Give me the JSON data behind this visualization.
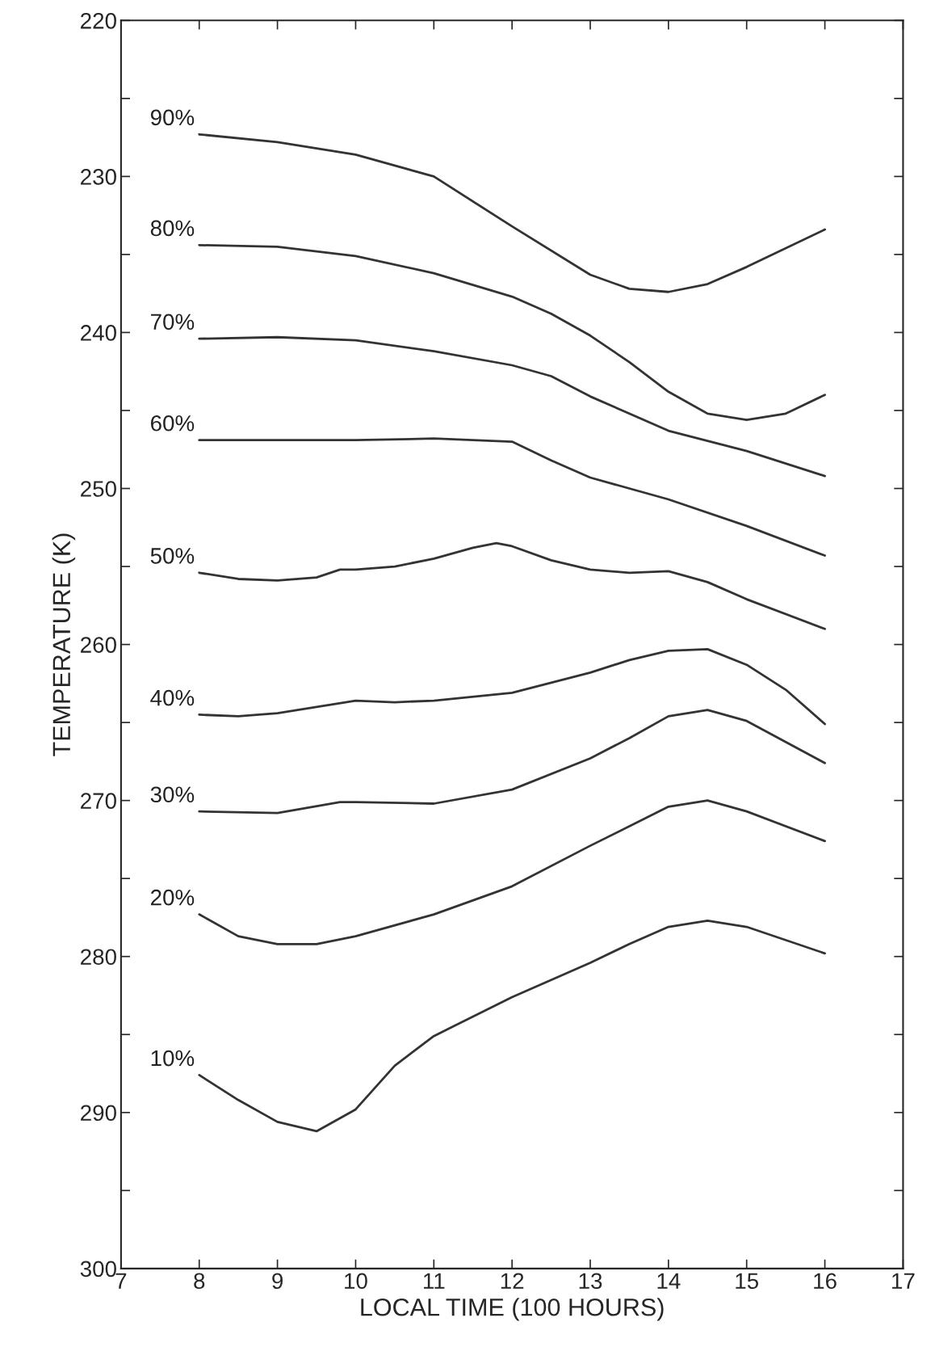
{
  "chart_data": {
    "type": "line",
    "xlabel": "LOCAL TIME (100 HOURS)",
    "ylabel": "TEMPERATURE (K)",
    "xlim": [
      7,
      17
    ],
    "xticks": [
      7,
      8,
      9,
      10,
      11,
      12,
      13,
      14,
      15,
      16,
      17
    ],
    "ylim": [
      300,
      220
    ],
    "yticks": [
      220,
      {
        "value": 225,
        "label": null
      },
      230,
      {
        "value": 235,
        "label": null
      },
      240,
      {
        "value": 245,
        "label": null
      },
      250,
      {
        "value": 255,
        "label": null
      },
      260,
      {
        "value": 265,
        "label": null
      },
      270,
      {
        "value": 275,
        "label": null
      },
      280,
      {
        "value": 285,
        "label": null
      },
      290,
      {
        "value": 295,
        "label": null
      },
      300
    ],
    "grid": false,
    "legend": false,
    "marker": "none",
    "line_style": "solid",
    "series": [
      {
        "name": "90%",
        "color": "#333333",
        "x": [
          8,
          9,
          10,
          11,
          12,
          13,
          13.5,
          14,
          14.5,
          15,
          16
        ],
        "values": [
          227.3,
          227.8,
          228.6,
          230.0,
          233.2,
          236.3,
          237.2,
          237.4,
          236.9,
          235.8,
          233.4
        ]
      },
      {
        "name": "80%",
        "color": "#333333",
        "x": [
          8,
          9,
          10,
          11,
          12,
          12.5,
          13,
          13.5,
          14,
          14.5,
          15,
          15.5,
          16
        ],
        "values": [
          234.4,
          234.5,
          235.1,
          236.2,
          237.7,
          238.8,
          240.2,
          241.9,
          243.8,
          245.2,
          245.6,
          245.2,
          244.0
        ]
      },
      {
        "name": "70%",
        "color": "#333333",
        "x": [
          8,
          9,
          10,
          11,
          12,
          12.5,
          13,
          14,
          15,
          16
        ],
        "values": [
          240.4,
          240.3,
          240.5,
          241.2,
          242.1,
          242.8,
          244.1,
          246.3,
          247.6,
          249.2
        ]
      },
      {
        "name": "60%",
        "color": "#333333",
        "x": [
          8,
          10,
          11,
          12,
          12.5,
          13,
          14,
          15,
          16
        ],
        "values": [
          246.9,
          246.9,
          246.8,
          247.0,
          248.2,
          249.3,
          250.7,
          252.4,
          254.3
        ]
      },
      {
        "name": "50%",
        "color": "#333333",
        "x": [
          8,
          8.5,
          9,
          9.5,
          9.8,
          10,
          10.5,
          11,
          11.5,
          11.8,
          12,
          12.5,
          13,
          13.5,
          14,
          14.5,
          15,
          16
        ],
        "values": [
          255.4,
          255.8,
          255.9,
          255.7,
          255.2,
          255.2,
          255.0,
          254.5,
          253.8,
          253.5,
          253.7,
          254.6,
          255.2,
          255.4,
          255.3,
          256.0,
          257.1,
          259.0
        ]
      },
      {
        "name": "40%",
        "color": "#333333",
        "x": [
          8,
          8.5,
          9,
          9.5,
          10,
          10.5,
          11,
          12,
          13,
          13.5,
          14,
          14.5,
          15,
          15.5,
          16
        ],
        "values": [
          264.5,
          264.6,
          264.4,
          264.0,
          263.6,
          263.7,
          263.6,
          263.1,
          261.8,
          261.0,
          260.4,
          260.3,
          261.3,
          262.9,
          265.1
        ]
      },
      {
        "name": "30%",
        "color": "#333333",
        "x": [
          8,
          9,
          9.8,
          10,
          11,
          12,
          13,
          13.5,
          14,
          14.5,
          15,
          16
        ],
        "values": [
          270.7,
          270.8,
          270.1,
          270.1,
          270.2,
          269.3,
          267.3,
          266.0,
          264.6,
          264.2,
          264.9,
          267.6
        ]
      },
      {
        "name": "20%",
        "color": "#333333",
        "x": [
          8,
          8.5,
          9,
          9.5,
          10,
          11,
          12,
          13,
          14,
          14.5,
          15,
          16
        ],
        "values": [
          277.3,
          278.7,
          279.2,
          279.2,
          278.7,
          277.3,
          275.5,
          272.9,
          270.4,
          270.0,
          270.7,
          272.6
        ]
      },
      {
        "name": "10%",
        "color": "#333333",
        "x": [
          8,
          8.5,
          9,
          9.5,
          10,
          10.5,
          11,
          12,
          13,
          13.5,
          14,
          14.5,
          15,
          16
        ],
        "values": [
          287.6,
          289.2,
          290.6,
          291.2,
          289.8,
          287.0,
          285.1,
          282.6,
          280.4,
          279.2,
          278.1,
          277.7,
          278.1,
          279.8
        ]
      }
    ]
  }
}
